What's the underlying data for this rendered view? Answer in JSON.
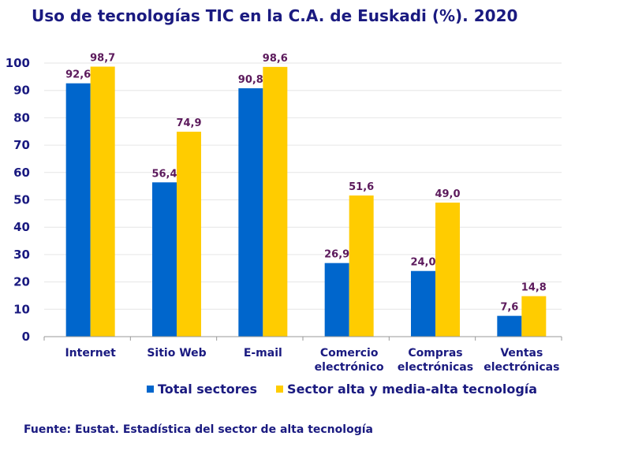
{
  "chart_data": {
    "type": "bar",
    "title": "Uso de tecnologías TIC en la C.A. de Euskadi (%). 2020",
    "categories": [
      [
        "Internet"
      ],
      [
        "Sitio Web"
      ],
      [
        "E-mail"
      ],
      [
        "Comercio",
        "electrónico"
      ],
      [
        "Compras",
        "electrónicas"
      ],
      [
        "Ventas",
        "electrónicas"
      ]
    ],
    "series": [
      {
        "name": "Total sectores",
        "color": "#0066cc",
        "values": [
          92.6,
          56.4,
          90.8,
          26.9,
          24.0,
          7.6
        ],
        "labels": [
          "92,6",
          "56,4",
          "90,8",
          "26,9",
          "24,0",
          "7,6"
        ]
      },
      {
        "name": "Sector alta y media-alta tecnología",
        "color": "#ffcc00",
        "values": [
          98.7,
          74.9,
          98.6,
          51.6,
          49.0,
          14.8
        ],
        "labels": [
          "98,7",
          "74,9",
          "98,6",
          "51,6",
          "49,0",
          "14,8"
        ]
      }
    ],
    "yticks": [
      "0",
      "10",
      "20",
      "30",
      "40",
      "50",
      "60",
      "70",
      "80",
      "90",
      "100"
    ],
    "ylim": [
      0,
      100
    ],
    "grid": true,
    "legend_position": "bottom"
  },
  "source": "Fuente: Eustat. Estadística del sector de alta tecnología"
}
